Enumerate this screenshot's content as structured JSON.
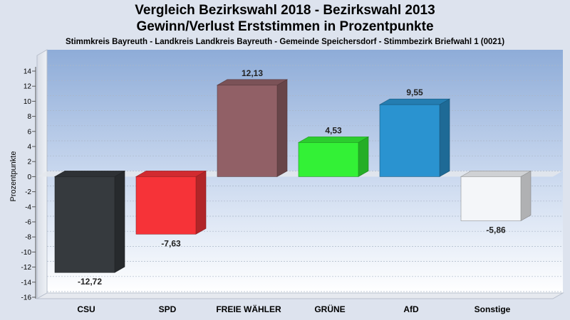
{
  "chart_data": {
    "type": "bar",
    "title": "Vergleich Bezirkswahl 2018 - Bezirkswahl 2013",
    "subtitle": "Gewinn/Verlust Erststimmen in Prozentpunkte",
    "subtitle2": "Stimmkreis Bayreuth - Landkreis Landkreis Bayreuth - Gemeinde Speichersdorf - Stimmbezirk Briefwahl 1 (0021)",
    "ylabel": "Prozentpunkte",
    "xlabel": "",
    "ylim": [
      -16,
      15
    ],
    "yticks": [
      14,
      12,
      10,
      8,
      6,
      4,
      2,
      0,
      -2,
      -4,
      -6,
      -8,
      -10,
      -12,
      -14,
      -16
    ],
    "categories": [
      "CSU",
      "SPD",
      "FREIE WÄHLER",
      "GRÜNE",
      "AfD",
      "Sonstige"
    ],
    "values": [
      -12.72,
      -7.63,
      12.13,
      4.53,
      9.55,
      -5.86
    ],
    "value_labels": [
      "-12,72",
      "-7,63",
      "12,13",
      "4,53",
      "9,55",
      "-5,86"
    ],
    "colors": [
      "#363a3e",
      "#f63338",
      "#916066",
      "#33f136",
      "#2a93d0",
      "#f4f6f9"
    ],
    "grid": true,
    "legend": "none"
  }
}
